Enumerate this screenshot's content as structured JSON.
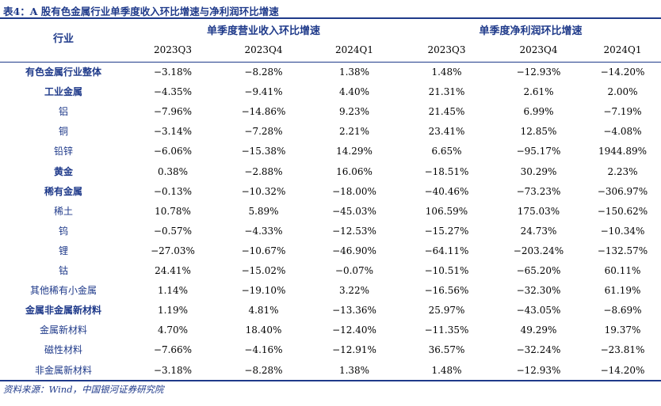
{
  "title": "表4：A 股有色金属行业单季度收入环比增速与净利润环比增速",
  "header": {
    "industry": "行业",
    "group_revenue": "单季度营业收入环比增速",
    "group_profit": "单季度净利润环比增速",
    "quarters": [
      "2023Q3",
      "2023Q4",
      "2024Q1",
      "2023Q3",
      "2023Q4",
      "2024Q1"
    ]
  },
  "rows": [
    {
      "name": "有色金属行业整体",
      "bold": true,
      "values": [
        "−3.18%",
        "−8.28%",
        "1.38%",
        "1.48%",
        "−12.93%",
        "−14.20%"
      ]
    },
    {
      "name": "工业金属",
      "bold": true,
      "values": [
        "−4.35%",
        "−9.41%",
        "4.40%",
        "21.31%",
        "2.61%",
        "2.00%"
      ]
    },
    {
      "name": "铝",
      "bold": false,
      "values": [
        "−7.96%",
        "−14.86%",
        "9.23%",
        "21.45%",
        "6.99%",
        "−7.19%"
      ]
    },
    {
      "name": "铜",
      "bold": false,
      "values": [
        "−3.14%",
        "−7.28%",
        "2.21%",
        "23.41%",
        "12.85%",
        "−4.08%"
      ]
    },
    {
      "name": "铅锌",
      "bold": false,
      "values": [
        "−6.06%",
        "−15.38%",
        "14.29%",
        "6.65%",
        "−95.17%",
        "1944.89%"
      ]
    },
    {
      "name": "黄金",
      "bold": true,
      "values": [
        "0.38%",
        "−2.88%",
        "16.06%",
        "−18.51%",
        "30.29%",
        "2.23%"
      ]
    },
    {
      "name": "稀有金属",
      "bold": true,
      "values": [
        "−0.13%",
        "−10.32%",
        "−18.00%",
        "−40.46%",
        "−73.23%",
        "−306.97%"
      ]
    },
    {
      "name": "稀土",
      "bold": false,
      "values": [
        "10.78%",
        "5.89%",
        "−45.03%",
        "106.59%",
        "175.03%",
        "−150.62%"
      ]
    },
    {
      "name": "钨",
      "bold": false,
      "values": [
        "−0.57%",
        "−4.33%",
        "−12.53%",
        "−15.27%",
        "24.73%",
        "−10.34%"
      ]
    },
    {
      "name": "锂",
      "bold": false,
      "values": [
        "−27.03%",
        "−10.67%",
        "−46.90%",
        "−64.11%",
        "−203.24%",
        "−132.57%"
      ]
    },
    {
      "name": "钴",
      "bold": false,
      "values": [
        "24.41%",
        "−15.02%",
        "−0.07%",
        "−10.51%",
        "−65.20%",
        "60.11%"
      ]
    },
    {
      "name": "其他稀有小金属",
      "bold": false,
      "values": [
        "1.14%",
        "−19.10%",
        "3.22%",
        "−16.56%",
        "−32.30%",
        "61.19%"
      ]
    },
    {
      "name": "金属非金属新材料",
      "bold": true,
      "values": [
        "1.19%",
        "4.81%",
        "−13.36%",
        "25.97%",
        "−43.05%",
        "−8.69%"
      ]
    },
    {
      "name": "金属新材料",
      "bold": false,
      "values": [
        "4.70%",
        "18.40%",
        "−12.40%",
        "−11.35%",
        "49.29%",
        "19.37%"
      ]
    },
    {
      "name": "磁性材料",
      "bold": false,
      "values": [
        "−7.66%",
        "−4.16%",
        "−12.91%",
        "36.57%",
        "−32.24%",
        "−23.81%"
      ]
    },
    {
      "name": "非金属新材料",
      "bold": false,
      "values": [
        "−3.18%",
        "−8.28%",
        "1.38%",
        "1.48%",
        "−12.93%",
        "−14.20%"
      ]
    }
  ],
  "footer": "资料来源：Wind，中国银河证券研究院",
  "colors": {
    "accent": "#1f3a8a",
    "text": "#000000"
  }
}
